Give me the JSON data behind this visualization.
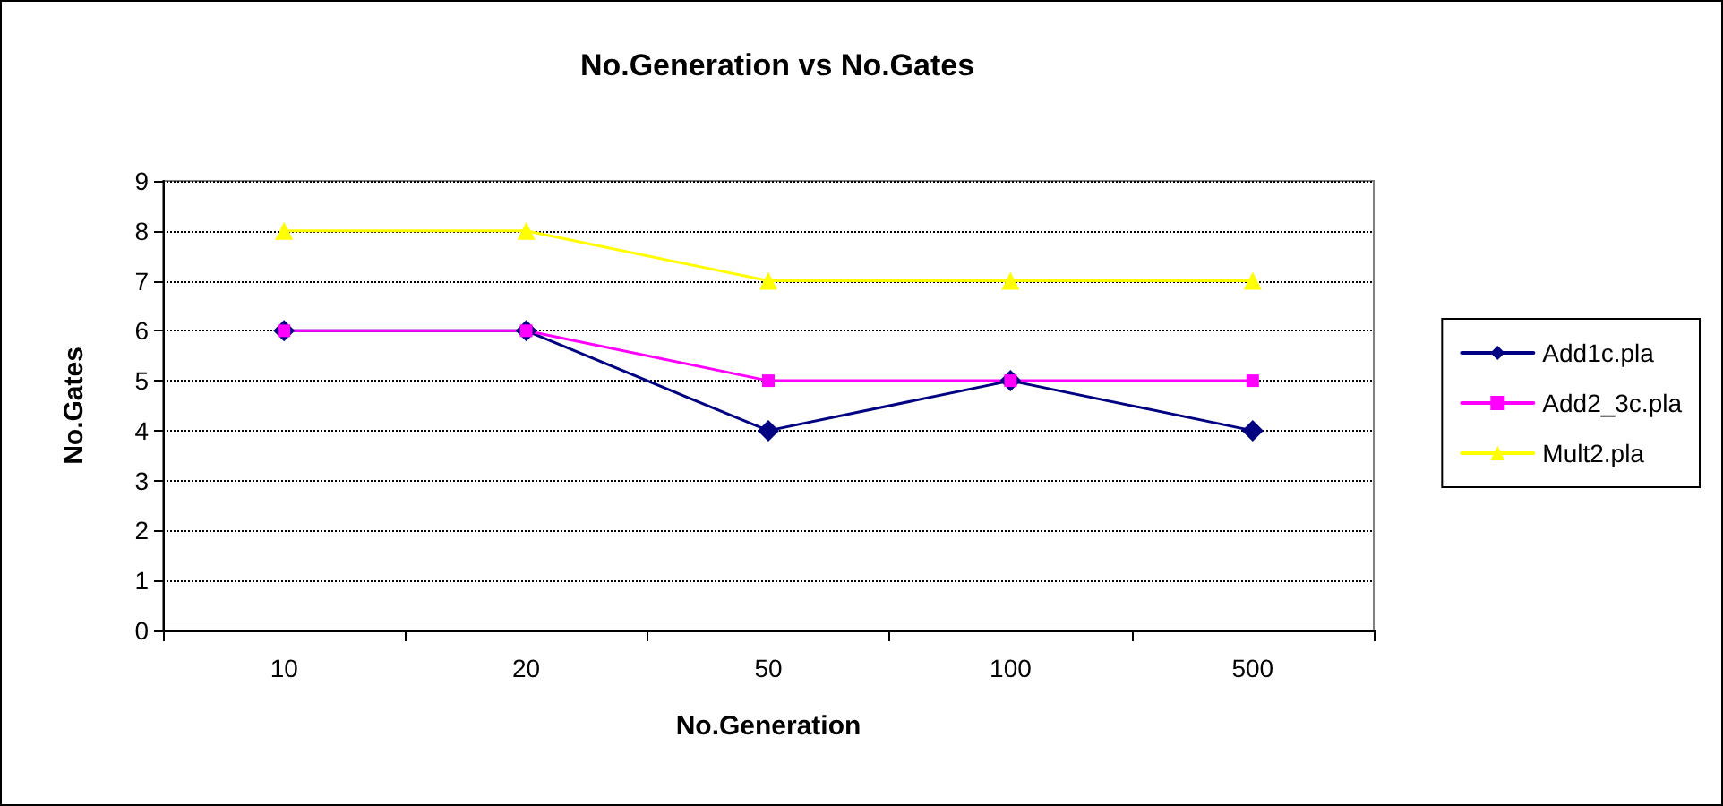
{
  "chart_data": {
    "type": "line",
    "title": "No.Generation vs No.Gates",
    "xlabel": "No.Generation",
    "ylabel": "No.Gates",
    "categories": [
      "10",
      "20",
      "50",
      "100",
      "500"
    ],
    "series": [
      {
        "name": "Add1c.pla",
        "color": "#000080",
        "marker": "diamond",
        "values": [
          6,
          6,
          4,
          5,
          4
        ]
      },
      {
        "name": "Add2_3c.pla",
        "color": "#ff00ff",
        "marker": "square",
        "values": [
          6,
          6,
          5,
          5,
          5
        ]
      },
      {
        "name": "Mult2.pla",
        "color": "#ffff00",
        "marker": "triangle",
        "values": [
          8,
          8,
          7,
          7,
          7
        ]
      }
    ],
    "ylim": [
      0,
      9
    ],
    "yticks": [
      0,
      1,
      2,
      3,
      4,
      5,
      6,
      7,
      8,
      9
    ],
    "grid": "y",
    "legend": "right",
    "line_style": "solid"
  }
}
